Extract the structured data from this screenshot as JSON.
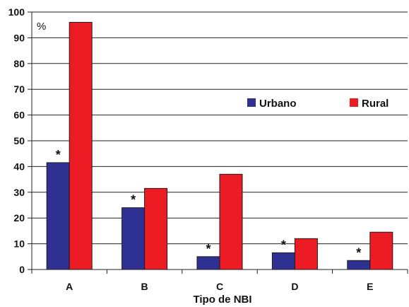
{
  "chart_data": {
    "type": "bar",
    "categories": [
      "A",
      "B",
      "C",
      "D",
      "E"
    ],
    "series": [
      {
        "name": "Urbano",
        "color": "#2E3192",
        "values": [
          41.5,
          24,
          5,
          6.5,
          3.5
        ]
      },
      {
        "name": "Rural",
        "color": "#ED1C24",
        "values": [
          96,
          31.5,
          37,
          12,
          14.5
        ]
      }
    ],
    "annotations": [
      "*",
      "*",
      "*",
      "*",
      "*"
    ],
    "xlabel": "Tipo de NBI",
    "ylabel": "%",
    "ylim": [
      0,
      100
    ],
    "yticks": [
      0,
      10,
      20,
      30,
      40,
      50,
      60,
      70,
      80,
      90,
      100
    ],
    "grid": true,
    "legend_position": "top-right"
  }
}
